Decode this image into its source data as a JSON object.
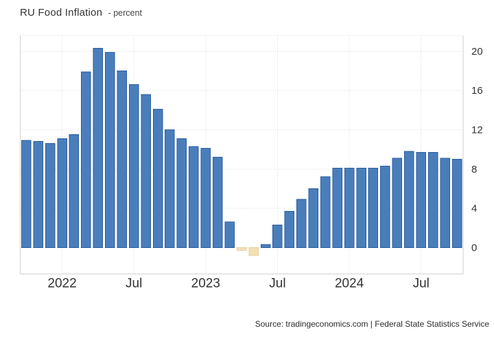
{
  "header": {
    "title": "RU Food Inflation",
    "subtitle": "- percent"
  },
  "footer": {
    "source": "Source: tradingeconomics.com | Federal State Statistics Service"
  },
  "colors": {
    "bar_positive_fill": "#4a7ebb",
    "bar_positive_border": "#2b5c9e",
    "bar_negative_fill": "#f3e0b4",
    "bar_negative_border": "#e7cf9e",
    "gridline": "#d8d8d8",
    "plot_border": "#cfcfcf",
    "axis_label": "#333333"
  },
  "chart_data": {
    "type": "bar",
    "title": "RU Food Inflation",
    "subtitle": "percent",
    "xlabel": "",
    "ylabel": "percent",
    "grid": "dotted",
    "y_axis_position": "right",
    "ylim": [
      -2.7,
      21.6
    ],
    "y_ticks": [
      0,
      4,
      8,
      12,
      16,
      20
    ],
    "x": [
      "2021-10",
      "2021-11",
      "2021-12",
      "2022-01",
      "2022-02",
      "2022-03",
      "2022-04",
      "2022-05",
      "2022-06",
      "2022-07",
      "2022-08",
      "2022-09",
      "2022-10",
      "2022-11",
      "2022-12",
      "2023-01",
      "2023-02",
      "2023-03",
      "2023-04",
      "2023-05",
      "2023-06",
      "2023-07",
      "2023-08",
      "2023-09",
      "2023-10",
      "2023-11",
      "2023-12",
      "2024-01",
      "2024-02",
      "2024-03",
      "2024-04",
      "2024-05",
      "2024-06",
      "2024-07",
      "2024-08",
      "2024-09",
      "2024-10"
    ],
    "values": [
      10.9,
      10.8,
      10.6,
      11.1,
      11.5,
      17.9,
      20.3,
      19.9,
      18.0,
      16.6,
      15.6,
      14.1,
      12.0,
      11.1,
      10.3,
      10.1,
      9.2,
      2.6,
      -0.3,
      -0.8,
      0.3,
      2.3,
      3.7,
      4.9,
      6.0,
      7.2,
      8.1,
      8.1,
      8.1,
      8.1,
      8.3,
      9.1,
      9.8,
      9.7,
      9.7,
      9.1,
      9.0
    ],
    "x_ticks": [
      {
        "index": 3,
        "label": "2022"
      },
      {
        "index": 9,
        "label": "Jul"
      },
      {
        "index": 15,
        "label": "2023"
      },
      {
        "index": 21,
        "label": "Jul"
      },
      {
        "index": 27,
        "label": "2024"
      },
      {
        "index": 33,
        "label": "Jul"
      }
    ]
  }
}
